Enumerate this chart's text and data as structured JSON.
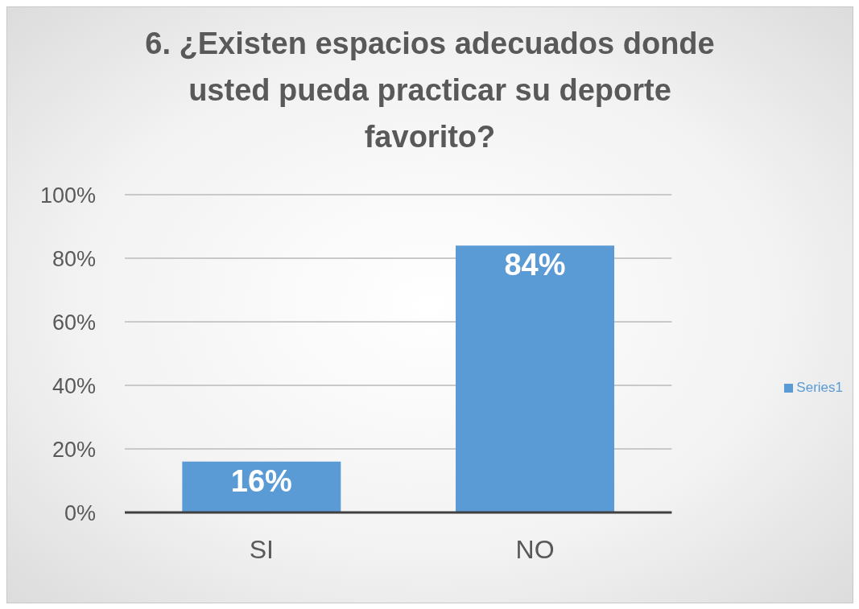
{
  "chart_data": {
    "type": "bar",
    "title": "6. ¿Existen espacios adecuados donde usted pueda practicar su deporte favorito?",
    "categories": [
      "SI",
      "NO"
    ],
    "series": [
      {
        "name": "Series1",
        "color": "#5b9bd5",
        "values": [
          16,
          84
        ],
        "value_labels": [
          "16%",
          "84%"
        ]
      }
    ],
    "ylim": [
      0,
      100
    ],
    "yticks": [
      {
        "value": 0,
        "label": "0%"
      },
      {
        "value": 20,
        "label": "20%"
      },
      {
        "value": 40,
        "label": "40%"
      },
      {
        "value": 60,
        "label": "60%"
      },
      {
        "value": 80,
        "label": "80%"
      },
      {
        "value": 100,
        "label": "100%"
      }
    ],
    "grid": "y",
    "legend": "right"
  }
}
